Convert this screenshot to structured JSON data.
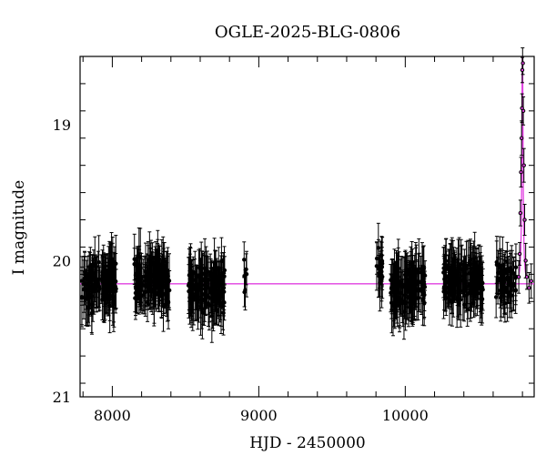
{
  "chart_data": {
    "type": "scatter",
    "title": "OGLE-2025-BLG-0806",
    "xlabel": "HJD - 2450000",
    "ylabel": "I magnitude",
    "xlim": [
      7780,
      10880
    ],
    "ylim": [
      21.0,
      18.5
    ],
    "y_inverted": true,
    "x_ticks": [
      8000,
      9000,
      10000
    ],
    "y_ticks": [
      19,
      20,
      21
    ],
    "grid": false,
    "colors": {
      "points": "#000000",
      "model": "#e040e0"
    },
    "baseline_mag": 20.17,
    "seasons": [
      {
        "x_start": 7790,
        "x_end": 8030,
        "mean_mag": 20.17,
        "spread": 0.17,
        "n": 120
      },
      {
        "x_start": 8150,
        "x_end": 8390,
        "mean_mag": 20.15,
        "spread": 0.15,
        "n": 150
      },
      {
        "x_start": 8520,
        "x_end": 8770,
        "mean_mag": 20.2,
        "spread": 0.17,
        "n": 140
      },
      {
        "x_start": 8890,
        "x_end": 8920,
        "mean_mag": 20.1,
        "spread": 0.15,
        "n": 6
      },
      {
        "x_start": 9800,
        "x_end": 9845,
        "mean_mag": 20.05,
        "spread": 0.15,
        "n": 18
      },
      {
        "x_start": 9900,
        "x_end": 10140,
        "mean_mag": 20.2,
        "spread": 0.16,
        "n": 130
      },
      {
        "x_start": 10260,
        "x_end": 10530,
        "mean_mag": 20.15,
        "spread": 0.14,
        "n": 140
      },
      {
        "x_start": 10620,
        "x_end": 10760,
        "mean_mag": 20.15,
        "spread": 0.14,
        "n": 60
      }
    ],
    "event": {
      "peak_x": 10800,
      "peak_mag": 18.3,
      "points": [
        {
          "x": 10775,
          "y": 20.12
        },
        {
          "x": 10781,
          "y": 19.95
        },
        {
          "x": 10786,
          "y": 19.65
        },
        {
          "x": 10790,
          "y": 19.35
        },
        {
          "x": 10794,
          "y": 19.1
        },
        {
          "x": 10797,
          "y": 18.88
        },
        {
          "x": 10799,
          "y": 18.6
        },
        {
          "x": 10801,
          "y": 18.35
        },
        {
          "x": 10803,
          "y": 18.55
        },
        {
          "x": 10806,
          "y": 18.9
        },
        {
          "x": 10810,
          "y": 19.3
        },
        {
          "x": 10815,
          "y": 19.7
        },
        {
          "x": 10822,
          "y": 20.0
        },
        {
          "x": 10830,
          "y": 20.12
        },
        {
          "x": 10845,
          "y": 20.2
        },
        {
          "x": 10860,
          "y": 20.15
        }
      ]
    }
  }
}
